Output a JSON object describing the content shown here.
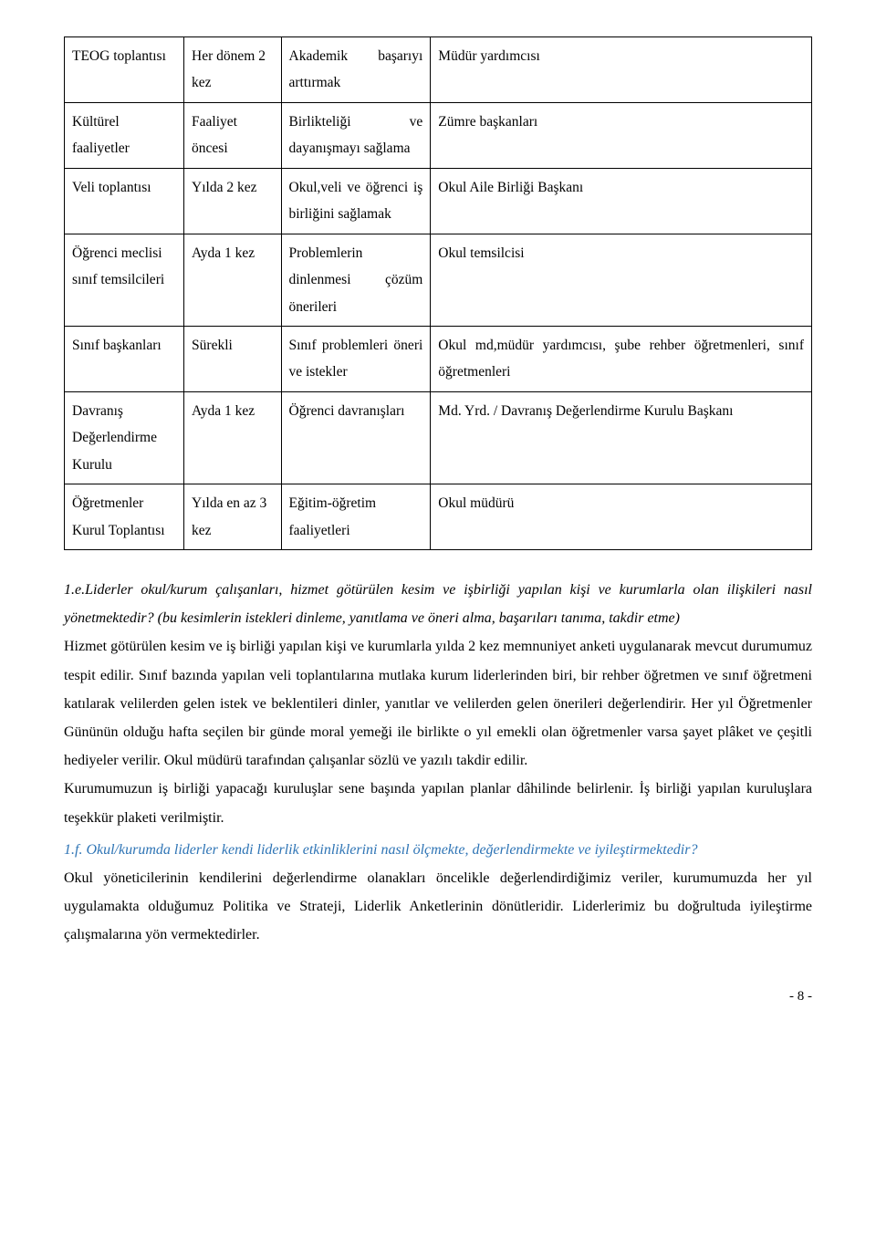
{
  "table": {
    "rows": [
      {
        "c1": "TEOG toplantısı",
        "c2": "Her dönem 2 kez",
        "c3": "Akademik başarıyı arttırmak",
        "c4": "Müdür yardımcısı"
      },
      {
        "c1": "Kültürel faaliyetler",
        "c2": "Faaliyet öncesi",
        "c3": "Birlikteliği ve dayanışmayı sağlama",
        "c4": "Zümre başkanları"
      },
      {
        "c1": "Veli toplantısı",
        "c2": "Yılda 2 kez",
        "c3": "Okul,veli ve öğrenci iş birliğini sağlamak",
        "c4": "Okul Aile Birliği Başkanı"
      },
      {
        "c1": "Öğrenci meclisi sınıf temsilcileri",
        "c2": "Ayda 1 kez",
        "c3": "Problemlerin dinlenmesi çözüm önerileri",
        "c4": "Okul temsilcisi"
      },
      {
        "c1": "Sınıf başkanları",
        "c2": "Sürekli",
        "c3": "Sınıf problemleri öneri ve istekler",
        "c4": "Okul md,müdür yardımcısı, şube rehber öğretmenleri, sınıf öğretmenleri"
      },
      {
        "c1": "Davranış Değerlendirme Kurulu",
        "c2": "Ayda 1 kez",
        "c3": "Öğrenci davranışları",
        "c4": "Md. Yrd. / Davranış Değerlendirme Kurulu Başkanı"
      },
      {
        "c1": "Öğretmenler Kurul Toplantısı",
        "c2": "Yılda en az 3 kez",
        "c3": "Eğitim-öğretim faaliyetleri",
        "c4": "Okul müdürü"
      }
    ]
  },
  "body": {
    "q1": "1.e.Liderler okul/kurum çalışanları, hizmet götürülen kesim ve işbirliği yapılan kişi ve kurumlarla olan ilişkileri nasıl yönetmektedir? (bu kesimlerin istekleri dinleme, yanıtlama ve öneri alma, başarıları tanıma, takdir etme)",
    "p1": "Hizmet götürülen kesim ve iş birliği yapılan kişi ve kurumlarla yılda 2 kez memnuniyet anketi uygulanarak mevcut durumumuz tespit edilir. Sınıf bazında yapılan veli toplantılarına mutlaka kurum liderlerinden biri, bir rehber öğretmen ve sınıf öğretmeni katılarak velilerden gelen istek ve beklentileri dinler, yanıtlar ve velilerden gelen önerileri değerlendirir. Her yıl Öğretmenler Gününün olduğu hafta seçilen bir günde moral yemeği ile birlikte o yıl emekli olan öğretmenler varsa şayet plâket ve çeşitli hediyeler verilir. Okul müdürü tarafından çalışanlar sözlü ve yazılı takdir edilir.",
    "p2": "Kurumumuzun iş birliği yapacağı kuruluşlar sene başında yapılan planlar dâhilinde belirlenir. İş birliği yapılan kuruluşlara teşekkür plaketi verilmiştir.",
    "q2": "1.f. Okul/kurumda liderler kendi liderlik etkinliklerini nasıl ölçmekte, değerlendirmekte ve iyileştirmektedir?",
    "p3": "Okul yöneticilerinin kendilerini değerlendirme olanakları öncelikle değerlendirdiğimiz veriler, kurumumuzda her yıl uygulamakta olduğumuz Politika ve Strateji, Liderlik Anketlerinin dönütleridir. Liderlerimiz bu doğrultuda iyileştirme çalışmalarına yön vermektedirler."
  },
  "page": "- 8 -"
}
